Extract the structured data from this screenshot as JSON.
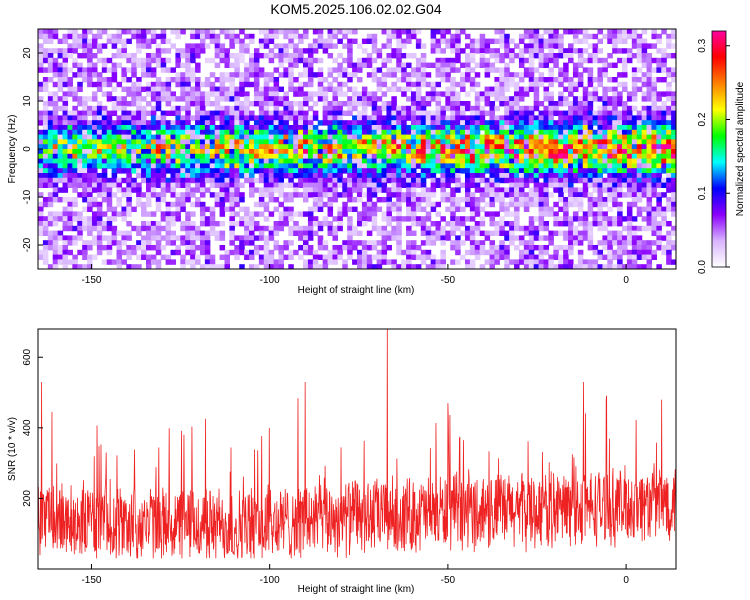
{
  "title": "KOM5.2025.106.02.02.G04",
  "chart_data": [
    {
      "type": "heatmap",
      "xlabel": "Height of straight line (km)",
      "ylabel": "Frequency (Hz)",
      "xlim": [
        -165,
        14
      ],
      "ylim": [
        -25,
        25
      ],
      "x_ticks": [
        -150,
        -100,
        -50,
        0
      ],
      "y_ticks": [
        -20,
        -10,
        0,
        10,
        20
      ],
      "band_center_hz": 0,
      "band_halfwidth_hz": 5,
      "grid": false,
      "colorbar": {
        "label": "Normalized spectral amplitude",
        "range": [
          0.0,
          0.32
        ],
        "ticks": [
          0.0,
          0.1,
          0.2,
          0.3
        ],
        "tick_labels": [
          "0.0",
          "0.1",
          "0.2",
          "0.3"
        ],
        "colors": [
          "#ffffff",
          "#d8b4ff",
          "#8b00ff",
          "#0000ff",
          "#00ffff",
          "#00ff00",
          "#ffff00",
          "#ff8000",
          "#ff0000",
          "#ff00a0"
        ]
      }
    },
    {
      "type": "line",
      "xlabel": "Height of straight line (km)",
      "ylabel": "SNR (10 * v/v)",
      "xlim": [
        -165,
        14
      ],
      "ylim": [
        0,
        680
      ],
      "x_ticks": [
        -150,
        -100,
        -50,
        0
      ],
      "y_ticks": [
        200,
        400,
        600
      ],
      "color": "#ee2222",
      "series": [
        {
          "values_note_free": true,
          "x": [
            -165,
            -160,
            -150,
            -140,
            -130,
            -120,
            -110,
            -100,
            -90,
            -80,
            -70,
            -60,
            -50,
            -40,
            -30,
            -20,
            -10,
            0,
            10,
            14
          ],
          "y": [
            150,
            140,
            135,
            130,
            125,
            125,
            120,
            125,
            140,
            145,
            150,
            155,
            160,
            165,
            165,
            170,
            175,
            180,
            190,
            195
          ]
        }
      ],
      "peaks": [
        {
          "x": -164,
          "y": 530
        },
        {
          "x": -90,
          "y": 530
        },
        {
          "x": -67,
          "y": 690
        },
        {
          "x": -50,
          "y": 470
        },
        {
          "x": -12,
          "y": 530
        },
        {
          "x": 10,
          "y": 480
        }
      ],
      "grid": false
    }
  ]
}
